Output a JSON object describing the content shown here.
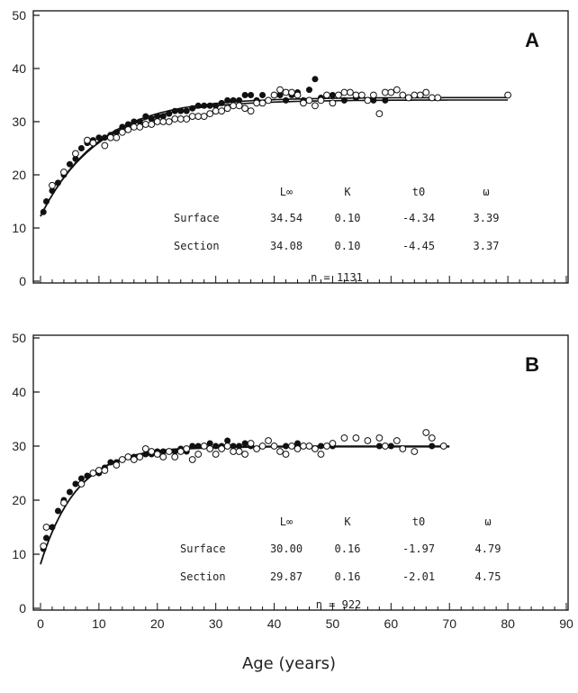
{
  "xlabel": "Age (years)",
  "x_ticks": [
    "0",
    "10",
    "20",
    "30",
    "40",
    "50",
    "60",
    "70",
    "80",
    "90"
  ],
  "chart_data": [
    {
      "type": "scatter",
      "panel": "A",
      "xlim": [
        0,
        90
      ],
      "ylim": [
        0,
        50
      ],
      "y_ticks": [
        "0",
        "10",
        "20",
        "30",
        "40",
        "50"
      ],
      "table": {
        "headers": [
          "L∞",
          "K",
          "t0",
          "ω"
        ],
        "rows": [
          {
            "label": "Surface",
            "values": [
              "34.54",
              "0.10",
              "-4.34",
              "3.39"
            ]
          },
          {
            "label": "Section",
            "values": [
              "34.08",
              "0.10",
              "-4.45",
              "3.37"
            ]
          }
        ],
        "n": "n = 1131"
      },
      "curves": [
        {
          "Linf": 34.54,
          "K": 0.1,
          "t0": -4.34,
          "xmax": 80
        },
        {
          "Linf": 34.08,
          "K": 0.1,
          "t0": -4.45,
          "xmax": 80
        }
      ],
      "series": [
        {
          "marker": "filled",
          "points": [
            [
              0.5,
              13
            ],
            [
              1,
              15
            ],
            [
              2,
              17
            ],
            [
              3,
              18.5
            ],
            [
              4,
              20
            ],
            [
              5,
              22
            ],
            [
              6,
              23
            ],
            [
              7,
              25
            ],
            [
              8,
              26
            ],
            [
              9,
              26.5
            ],
            [
              10,
              27
            ],
            [
              11,
              27
            ],
            [
              12,
              27.5
            ],
            [
              13,
              28
            ],
            [
              14,
              29
            ],
            [
              15,
              29.5
            ],
            [
              16,
              30
            ],
            [
              17,
              30
            ],
            [
              18,
              31
            ],
            [
              19,
              30.5
            ],
            [
              20,
              31
            ],
            [
              21,
              31
            ],
            [
              22,
              31.5
            ],
            [
              23,
              32
            ],
            [
              24,
              32
            ],
            [
              25,
              32
            ],
            [
              26,
              32.5
            ],
            [
              27,
              33
            ],
            [
              28,
              33
            ],
            [
              29,
              33
            ],
            [
              30,
              33
            ],
            [
              31,
              33.5
            ],
            [
              32,
              34
            ],
            [
              33,
              34
            ],
            [
              34,
              34
            ],
            [
              35,
              35
            ],
            [
              36,
              35
            ],
            [
              37,
              34
            ],
            [
              38,
              35
            ],
            [
              39,
              34
            ],
            [
              40,
              35
            ],
            [
              41,
              35
            ],
            [
              42,
              34
            ],
            [
              43,
              35
            ],
            [
              44,
              35.5
            ],
            [
              45,
              34
            ],
            [
              46,
              36
            ],
            [
              47,
              38
            ],
            [
              48,
              34.5
            ],
            [
              50,
              35
            ],
            [
              52,
              34
            ],
            [
              54,
              34.5
            ],
            [
              55,
              35
            ],
            [
              57,
              34
            ],
            [
              59,
              34
            ]
          ]
        },
        {
          "marker": "open",
          "points": [
            [
              2,
              18
            ],
            [
              4,
              20.5
            ],
            [
              6,
              24
            ],
            [
              8,
              26.5
            ],
            [
              9,
              26
            ],
            [
              11,
              25.5
            ],
            [
              12,
              27
            ],
            [
              13,
              27
            ],
            [
              14,
              28
            ],
            [
              15,
              28.5
            ],
            [
              16,
              29
            ],
            [
              17,
              29
            ],
            [
              18,
              29.5
            ],
            [
              19,
              29.5
            ],
            [
              20,
              30
            ],
            [
              21,
              30
            ],
            [
              22,
              30
            ],
            [
              23,
              30.5
            ],
            [
              24,
              30.5
            ],
            [
              25,
              30.5
            ],
            [
              26,
              31
            ],
            [
              27,
              31
            ],
            [
              28,
              31
            ],
            [
              29,
              31.5
            ],
            [
              30,
              32
            ],
            [
              31,
              32
            ],
            [
              32,
              32.5
            ],
            [
              33,
              33
            ],
            [
              34,
              33
            ],
            [
              35,
              32.5
            ],
            [
              36,
              32
            ],
            [
              37,
              33.5
            ],
            [
              38,
              33.5
            ],
            [
              39,
              34
            ],
            [
              40,
              35
            ],
            [
              41,
              36
            ],
            [
              42,
              35.5
            ],
            [
              43,
              35.5
            ],
            [
              44,
              35
            ],
            [
              45,
              33.5
            ],
            [
              46,
              34
            ],
            [
              47,
              33
            ],
            [
              48,
              34
            ],
            [
              49,
              35
            ],
            [
              50,
              33.5
            ],
            [
              51,
              35
            ],
            [
              52,
              35.5
            ],
            [
              53,
              35.5
            ],
            [
              54,
              35
            ],
            [
              55,
              35
            ],
            [
              56,
              34
            ],
            [
              57,
              35
            ],
            [
              58,
              31.5
            ],
            [
              59,
              35.5
            ],
            [
              60,
              35.5
            ],
            [
              61,
              36
            ],
            [
              62,
              35
            ],
            [
              63,
              34.5
            ],
            [
              64,
              35
            ],
            [
              65,
              35
            ],
            [
              66,
              35.5
            ],
            [
              67,
              34.5
            ],
            [
              68,
              34.5
            ],
            [
              80,
              35
            ]
          ]
        }
      ]
    },
    {
      "type": "scatter",
      "panel": "B",
      "xlim": [
        0,
        90
      ],
      "ylim": [
        0,
        50
      ],
      "y_ticks": [
        "0",
        "10",
        "20",
        "30",
        "40",
        "50"
      ],
      "table": {
        "headers": [
          "L∞",
          "K",
          "t0",
          "ω"
        ],
        "rows": [
          {
            "label": "Surface",
            "values": [
              "30.00",
              "0.16",
              "-1.97",
              "4.79"
            ]
          },
          {
            "label": "Section",
            "values": [
              "29.87",
              "0.16",
              "-2.01",
              "4.75"
            ]
          }
        ],
        "n": "n = 922"
      },
      "curves": [
        {
          "Linf": 30.0,
          "K": 0.16,
          "t0": -1.97,
          "xmax": 70
        },
        {
          "Linf": 29.87,
          "K": 0.16,
          "t0": -2.01,
          "xmax": 70
        }
      ],
      "series": [
        {
          "marker": "filled",
          "points": [
            [
              0.5,
              11
            ],
            [
              1,
              13
            ],
            [
              2,
              15
            ],
            [
              3,
              18
            ],
            [
              4,
              20
            ],
            [
              5,
              21.5
            ],
            [
              6,
              23
            ],
            [
              7,
              24
            ],
            [
              8,
              24.5
            ],
            [
              9,
              25
            ],
            [
              10,
              25
            ],
            [
              11,
              26
            ],
            [
              12,
              27
            ],
            [
              13,
              27
            ],
            [
              14,
              27.5
            ],
            [
              15,
              28
            ],
            [
              16,
              28
            ],
            [
              17,
              28
            ],
            [
              18,
              28.5
            ],
            [
              19,
              28.5
            ],
            [
              20,
              29
            ],
            [
              21,
              29
            ],
            [
              22,
              29
            ],
            [
              23,
              29
            ],
            [
              24,
              29.5
            ],
            [
              25,
              29
            ],
            [
              26,
              30
            ],
            [
              27,
              30
            ],
            [
              28,
              30
            ],
            [
              29,
              30.5
            ],
            [
              30,
              30
            ],
            [
              31,
              30
            ],
            [
              32,
              31
            ],
            [
              33,
              30
            ],
            [
              34,
              30
            ],
            [
              35,
              30.5
            ],
            [
              36,
              30
            ],
            [
              38,
              30
            ],
            [
              40,
              30
            ],
            [
              42,
              30
            ],
            [
              44,
              30.5
            ],
            [
              46,
              30
            ],
            [
              48,
              30
            ],
            [
              50,
              30
            ],
            [
              58,
              30
            ],
            [
              60,
              30
            ],
            [
              67,
              30
            ]
          ]
        },
        {
          "marker": "open",
          "points": [
            [
              0.5,
              11.5
            ],
            [
              1,
              15
            ],
            [
              4,
              19.5
            ],
            [
              7,
              23
            ],
            [
              9,
              25
            ],
            [
              10,
              25.5
            ],
            [
              11,
              25.5
            ],
            [
              13,
              26.5
            ],
            [
              14,
              27.5
            ],
            [
              15,
              28
            ],
            [
              16,
              27.5
            ],
            [
              17,
              28
            ],
            [
              18,
              29.5
            ],
            [
              19,
              29
            ],
            [
              20,
              28.5
            ],
            [
              21,
              28
            ],
            [
              22,
              29
            ],
            [
              23,
              28
            ],
            [
              24,
              29
            ],
            [
              25,
              29.5
            ],
            [
              26,
              27.5
            ],
            [
              27,
              28.5
            ],
            [
              28,
              30
            ],
            [
              29,
              29.5
            ],
            [
              30,
              28.5
            ],
            [
              31,
              29.5
            ],
            [
              32,
              30
            ],
            [
              33,
              29
            ],
            [
              34,
              29
            ],
            [
              35,
              28.5
            ],
            [
              36,
              30.5
            ],
            [
              37,
              29.5
            ],
            [
              38,
              30
            ],
            [
              39,
              31
            ],
            [
              40,
              30
            ],
            [
              41,
              29
            ],
            [
              42,
              28.5
            ],
            [
              43,
              30
            ],
            [
              44,
              29.5
            ],
            [
              45,
              30
            ],
            [
              46,
              30
            ],
            [
              47,
              29.5
            ],
            [
              48,
              28.5
            ],
            [
              49,
              30
            ],
            [
              50,
              30.5
            ],
            [
              52,
              31.5
            ],
            [
              54,
              31.5
            ],
            [
              56,
              31
            ],
            [
              58,
              31.5
            ],
            [
              59,
              30
            ],
            [
              61,
              31
            ],
            [
              62,
              29.5
            ],
            [
              64,
              29
            ],
            [
              66,
              32.5
            ],
            [
              67,
              31.5
            ],
            [
              69,
              30
            ]
          ]
        }
      ]
    }
  ]
}
